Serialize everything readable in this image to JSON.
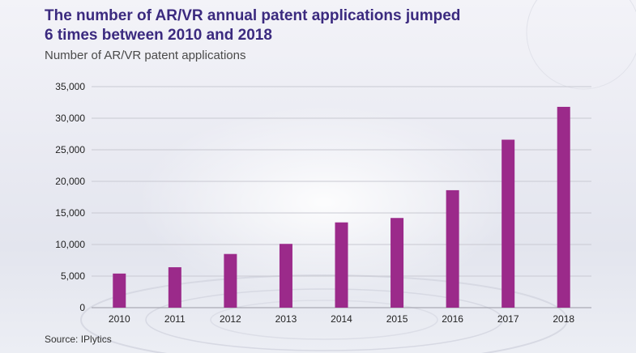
{
  "header": {
    "title_line1": "The number of AR/VR annual patent applications jumped",
    "title_line2": "6 times between 2010 and 2018",
    "subtitle": "Number of AR/VR patent applications"
  },
  "footer": {
    "source": "Source: IPlytics"
  },
  "colors": {
    "bar": "#9b2a8a",
    "title": "#3b2a7f",
    "grid": "#c9c9d2"
  },
  "chart_data": {
    "type": "bar",
    "title": "",
    "xlabel": "",
    "ylabel": "",
    "categories": [
      "2010",
      "2011",
      "2012",
      "2013",
      "2014",
      "2015",
      "2016",
      "2017",
      "2018"
    ],
    "values": [
      5400,
      6400,
      8500,
      10100,
      13500,
      14200,
      18600,
      26600,
      31800
    ],
    "ylim": [
      0,
      35000
    ],
    "yticks": [
      0,
      5000,
      10000,
      15000,
      20000,
      25000,
      30000,
      35000
    ],
    "ytick_labels": [
      "0",
      "5,000",
      "10,000",
      "15,000",
      "20,000",
      "25,000",
      "30,000",
      "35,000"
    ],
    "grid": true,
    "legend": "none"
  }
}
